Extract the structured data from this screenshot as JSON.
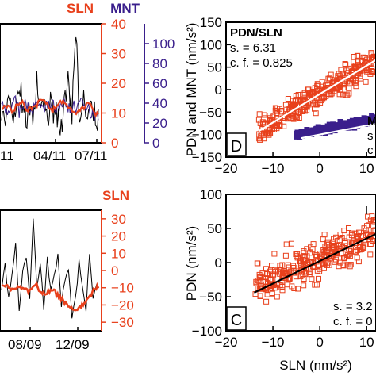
{
  "colors": {
    "black": "#000000",
    "sln": "#e8401c",
    "mnt": "#3a1f8c",
    "fit_white": "#ffffff",
    "fit_black": "#000000"
  },
  "chart_data": [
    {
      "id": "top-left",
      "type": "line",
      "title": "",
      "xlabel": "",
      "x_ticks": [
        "11",
        "04/11",
        "07/11"
      ],
      "right_axis_1": {
        "label": "SLN",
        "ticks": [
          "40",
          "30",
          "20",
          "10",
          "0"
        ],
        "ylim": [
          0,
          40
        ]
      },
      "right_axis_2": {
        "label": "MNT",
        "ticks": [
          "100",
          "80",
          "60",
          "40",
          "20",
          "0"
        ],
        "ylim": [
          0,
          120
        ]
      },
      "series": [
        {
          "name": "SLN",
          "axis": "right_axis_1",
          "color": "sln",
          "values": [
            11,
            13,
            12,
            10,
            13,
            14,
            12,
            11,
            12,
            13,
            15,
            14,
            12,
            11,
            12,
            14,
            13,
            12,
            11,
            10,
            11,
            12,
            13,
            12,
            10
          ]
        },
        {
          "name": "MNT",
          "axis": "right_axis_2",
          "color": "mnt",
          "values": [
            35,
            38,
            30,
            42,
            36,
            32,
            40,
            37,
            34,
            39,
            36,
            33,
            41,
            38,
            35,
            37,
            40,
            36,
            34,
            38,
            42,
            36,
            33,
            31,
            30
          ]
        },
        {
          "name": "",
          "axis": "right_axis_1",
          "color": "black",
          "values": [
            10,
            6,
            16,
            8,
            14,
            18,
            7,
            12,
            9,
            17,
            11,
            13,
            8,
            15,
            10,
            6,
            12,
            18,
            9,
            38,
            7,
            14,
            8,
            11,
            9
          ]
        }
      ]
    },
    {
      "id": "panel-D",
      "type": "scatter",
      "panel_letter": "D",
      "ylabel": "PDN and MNT (nm/s²)",
      "x_ticks": [
        "−20",
        "−10",
        "0",
        "10"
      ],
      "y_ticks": [
        "150",
        "100",
        "50",
        "0",
        "−50",
        "−100",
        "−150"
      ],
      "xlim": [
        -20,
        12
      ],
      "ylim": [
        -150,
        150
      ],
      "legend_title": "PDN/SLN",
      "stats": [
        "s. = 6.31",
        "c. f. = 0.825"
      ],
      "legend_title_2": "M",
      "stats_2": [
        "s",
        "c"
      ],
      "series": [
        {
          "name": "PDN/SLN",
          "color": "sln",
          "n": 340,
          "slope": 6.31,
          "intercept": -10,
          "xrange": [
            -13,
            12
          ],
          "noise": 22
        },
        {
          "name": "MNT/SLN",
          "color": "mnt",
          "n": 260,
          "slope": 2.0,
          "intercept": -90,
          "xrange": [
            -5,
            12
          ],
          "noise": 5
        }
      ],
      "fit_lines": [
        {
          "color": "fit_white",
          "x": [
            -13,
            12
          ],
          "y": [
            -92,
            66
          ]
        },
        {
          "color": "fit_white",
          "x": [
            -4,
            12
          ],
          "y": [
            -108,
            -76
          ]
        }
      ]
    },
    {
      "id": "bottom-left",
      "type": "line",
      "xlabel": "",
      "x_ticks": [
        "08/09",
        "12/09"
      ],
      "right_axis_1": {
        "label": "SLN",
        "ticks": [
          "30",
          "20",
          "10",
          "0",
          "−10",
          "−20",
          "−30"
        ],
        "ylim": [
          -35,
          35
        ]
      },
      "series": [
        {
          "name": "",
          "color": "black",
          "values": [
            -10,
            5,
            -18,
            -2,
            15,
            -25,
            0,
            8,
            -14,
            30,
            -8,
            3,
            -20,
            6,
            -12,
            -4,
            10,
            -22,
            -6,
            2,
            -28,
            -15,
            4,
            -10,
            -24,
            12,
            -16,
            -8
          ]
        },
        {
          "name": "SLN",
          "color": "sln",
          "values": [
            -8,
            -9,
            -10,
            -11,
            -10,
            -9,
            -10,
            -12,
            -11,
            -10,
            -9,
            -12,
            -14,
            -13,
            -11,
            -12,
            -14,
            -16,
            -18,
            -20,
            -22,
            -23,
            -22,
            -20,
            -18,
            -16,
            -12,
            -10
          ]
        }
      ]
    },
    {
      "id": "panel-C",
      "type": "scatter",
      "panel_letter": "C",
      "ylabel": "PDN (nm/s²)",
      "xlabel": "SLN (nm/s²)",
      "x_ticks": [
        "−20",
        "−10",
        "0",
        "10"
      ],
      "y_ticks": [
        "100",
        "50",
        "0",
        "−50",
        "−100"
      ],
      "xlim": [
        -20,
        12
      ],
      "ylim": [
        -100,
        100
      ],
      "legend_title": "I",
      "stats": [
        "s. = 3.2",
        "c. f. = 0"
      ],
      "series": [
        {
          "name": "PDN/SLN",
          "color": "sln",
          "n": 300,
          "slope": 3.2,
          "intercept": 5,
          "xrange": [
            -14,
            12
          ],
          "noise": 20
        }
      ],
      "fit_lines": [
        {
          "color": "fit_black",
          "x": [
            -14,
            12
          ],
          "y": [
            -44,
            42
          ]
        }
      ]
    }
  ]
}
